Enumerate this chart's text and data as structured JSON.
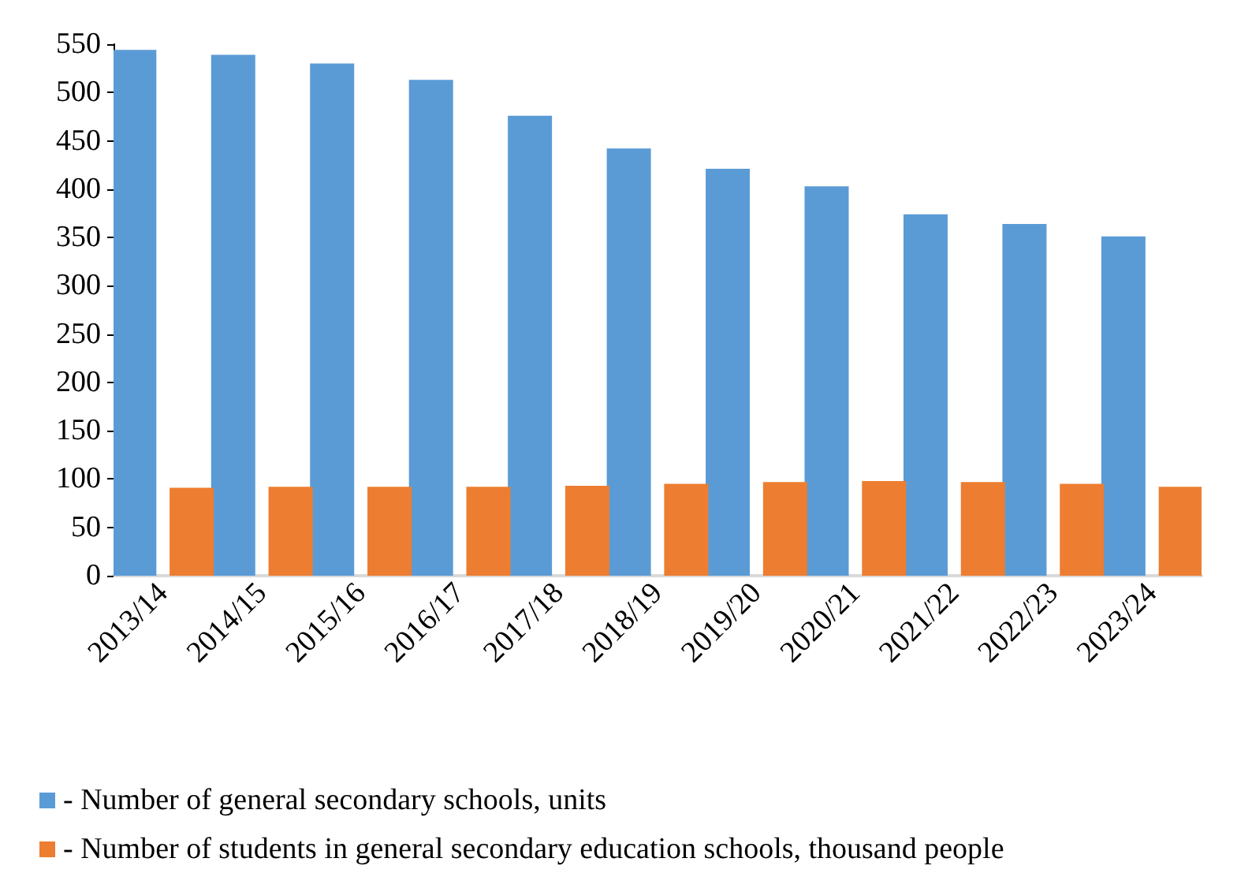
{
  "chart_data": {
    "type": "bar",
    "categories": [
      "2013/14",
      "2014/15",
      "2015/16",
      "2016/17",
      "2017/18",
      "2018/19",
      "2019/20",
      "2020/21",
      "2021/22",
      "2022/23",
      "2023/24"
    ],
    "series": [
      {
        "name": "- Number of general secondary schools, units",
        "color": "#5b9bd5",
        "values": [
          544,
          539,
          530,
          513,
          476,
          442,
          421,
          403,
          374,
          364,
          351
        ]
      },
      {
        "name": "- Number of students in general secondary education schools, thousand people",
        "color": "#ed7d31",
        "values": [
          91,
          92,
          92,
          92,
          93,
          95,
          97,
          98,
          97,
          95,
          92
        ]
      }
    ],
    "ylim": [
      0,
      550
    ],
    "yticks": [
      0,
      50,
      100,
      150,
      200,
      250,
      300,
      350,
      400,
      450,
      500,
      550
    ],
    "grid": false,
    "legend": "bottom left"
  }
}
